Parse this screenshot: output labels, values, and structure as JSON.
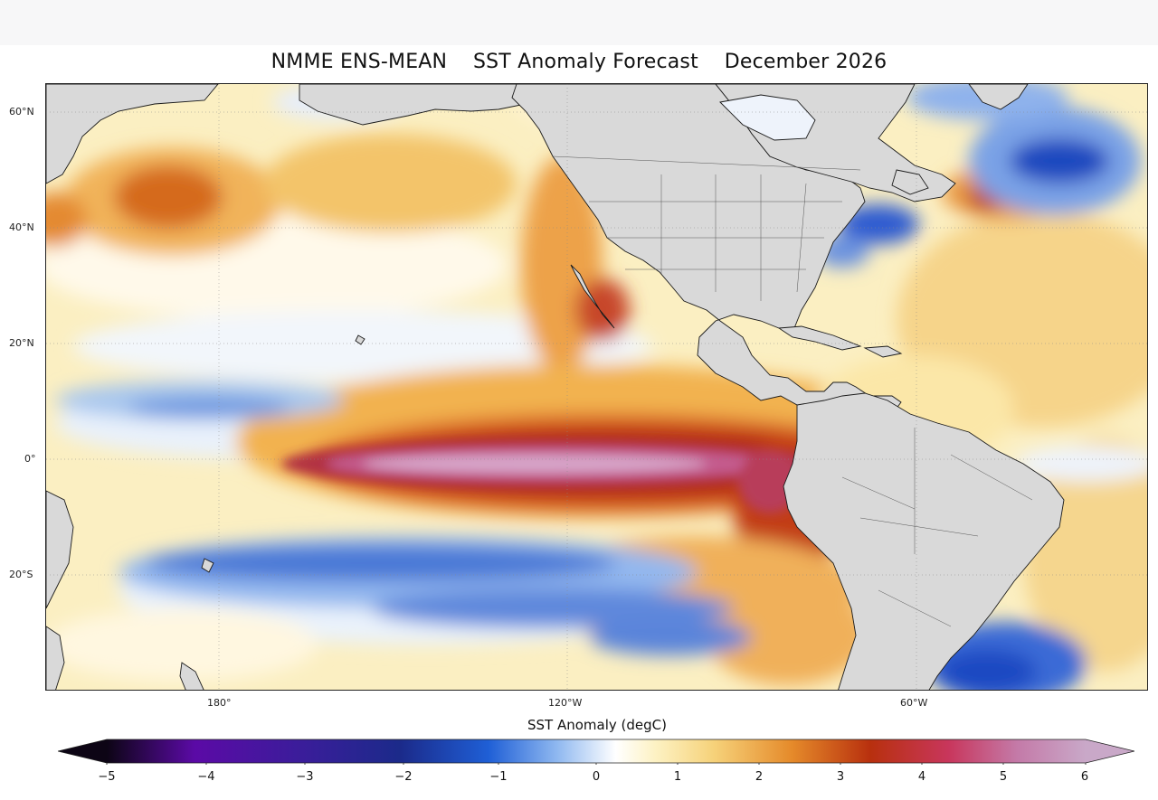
{
  "title": "NMME ENS-MEAN    SST Anomaly Forecast    December 2026",
  "latitude_labels": [
    "60°N",
    "40°N",
    "20°N",
    "0°",
    "20°S"
  ],
  "longitude_labels": [
    "180°",
    "120°W",
    "60°W"
  ],
  "colorbar": {
    "label": "SST Anomaly (degC)",
    "ticks": [
      "−5",
      "−4",
      "−3",
      "−2",
      "−1",
      "0",
      "1",
      "2",
      "3",
      "4",
      "5",
      "6"
    ],
    "range": [
      -5,
      6
    ],
    "extend": "both",
    "colors": {
      "neg_deep": "#0d0515",
      "neg_purple": "#5b0aa6",
      "neg_navy": "#1b2a8a",
      "neg_blue": "#1f5fd6",
      "neg_light": "#bcd6f6",
      "zero": "#ffffff",
      "pos_yellow": "#f6dc8a",
      "pos_orange": "#e58a2a",
      "pos_red": "#b8300e",
      "pos_crimson": "#c8365c",
      "pos_pink": "#c47aa8",
      "pos_lilac": "#c9a8c8"
    }
  },
  "map_colors": {
    "land": "#d9d9d9",
    "coast": "#1a1a1a",
    "ocean_base": "#fbefc2"
  },
  "footer_credit": ""
}
